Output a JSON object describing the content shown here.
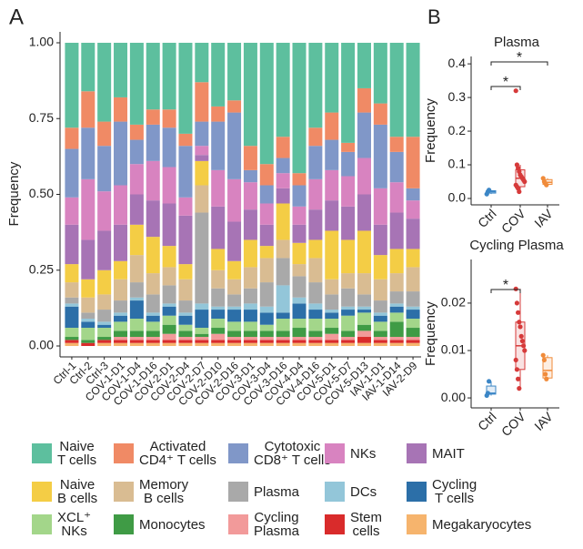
{
  "chart_data": [
    {
      "type": "stacked_bar",
      "panel_label": "A",
      "ylabel": "Frequency",
      "categories": [
        "Ctrl-1",
        "Ctrl-2",
        "Ctrl-3",
        "COV-1-D1",
        "COV-1-D4",
        "COV-1-D16",
        "COV-2-D1",
        "COV-2-D4",
        "COV-2-D7",
        "COV-2-D10",
        "COV-2-D16",
        "COV-3-D1",
        "COV-3-D4",
        "COV-3-D16",
        "COV-4-D4",
        "COV-4-D16",
        "COV-5-D1",
        "COV-5-D7",
        "COV-5-D13",
        "IAV-1-D1",
        "IAV-1-D14",
        "IAV-2-D9"
      ],
      "ylim": [
        -0.036,
        1.036
      ],
      "yticks": [
        {
          "value": 0,
          "label": "0.00"
        },
        0.25,
        {
          "value": 0.5,
          "label": "0.50"
        },
        0.75,
        {
          "value": 1,
          "label": "1.00"
        }
      ],
      "series": [
        {
          "name": "Naive\nT cells",
          "color": "#5dbf9e",
          "values": [
            0.28,
            0.16,
            0.26,
            0.18,
            0.27,
            0.22,
            0.22,
            0.3,
            0.13,
            0.21,
            0.19,
            0.34,
            0.4,
            0.31,
            0.43,
            0.28,
            0.23,
            0.33,
            0.15,
            0.2,
            0.31,
            0.31
          ]
        },
        {
          "name": "Activated\nCD4⁺ T cells",
          "color": "#f08a65",
          "values": [
            0.07,
            0.12,
            0.08,
            0.08,
            0.05,
            0.05,
            0.06,
            0.04,
            0.13,
            0.05,
            0.04,
            0.08,
            0.07,
            0.07,
            0.04,
            0.06,
            0.09,
            0.03,
            0.08,
            0.07,
            0.05,
            0.17
          ]
        },
        {
          "name": "Cytotoxic\nCD8⁺ T cells",
          "color": "#8097c8",
          "values": [
            0.16,
            0.17,
            0.15,
            0.21,
            0.08,
            0.12,
            0.13,
            0.17,
            0.08,
            0.16,
            0.22,
            0.04,
            0.06,
            0.05,
            0.07,
            0.11,
            0.1,
            0.08,
            0.15,
            0.21,
            0.1,
            0.04
          ]
        },
        {
          "name": "NKs",
          "color": "#d883c0",
          "values": [
            0.09,
            0.2,
            0.13,
            0.13,
            0.1,
            0.13,
            0.12,
            0.06,
            0.03,
            0.12,
            0.14,
            0.09,
            0.07,
            0.05,
            0.06,
            0.1,
            0.1,
            0.1,
            0.12,
            0.12,
            0.1,
            0.06
          ]
        },
        {
          "name": "MAIT",
          "color": "#a774b5",
          "values": [
            0.13,
            0.13,
            0.13,
            0.12,
            0.1,
            0.12,
            0.14,
            0.16,
            0.02,
            0.14,
            0.13,
            0.1,
            0.07,
            0.05,
            0.06,
            0.1,
            0.1,
            0.11,
            0.12,
            0.1,
            0.12,
            0.1
          ]
        },
        {
          "name": "Naive\nB cells",
          "color": "#f4cd45",
          "values": [
            0.06,
            0.06,
            0.08,
            0.06,
            0.1,
            0.12,
            0.07,
            0.05,
            0.08,
            0.07,
            0.06,
            0.09,
            0.04,
            0.12,
            0.07,
            0.06,
            0.16,
            0.11,
            0.14,
            0.08,
            0.08,
            0.06
          ]
        },
        {
          "name": "Memory\nB cells",
          "color": "#d9bc92",
          "values": [
            0.05,
            0.05,
            0.05,
            0.07,
            0.09,
            0.07,
            0.06,
            0.07,
            0.09,
            0.06,
            0.05,
            0.07,
            0.08,
            0.06,
            0.04,
            0.08,
            0.05,
            0.05,
            0.07,
            0.07,
            0.06,
            0.08
          ]
        },
        {
          "name": "Plasma",
          "color": "#a9a9a9",
          "values": [
            0.02,
            0.02,
            0.04,
            0.04,
            0.05,
            0.06,
            0.06,
            0.04,
            0.3,
            0.06,
            0.04,
            0.05,
            0.08,
            0.09,
            0.07,
            0.07,
            0.05,
            0.06,
            0.04,
            0.04,
            0.04,
            0.05
          ]
        },
        {
          "name": "DCs",
          "color": "#93c6d9",
          "values": [
            0.01,
            0.01,
            0.01,
            0.01,
            0.01,
            0.01,
            0.01,
            0.01,
            0.02,
            0.01,
            0.01,
            0.02,
            0.02,
            0.09,
            0.02,
            0.02,
            0.01,
            0.01,
            0.01,
            0.01,
            0.01,
            0.01
          ]
        },
        {
          "name": "Cycling\nT cells",
          "color": "#2c6fa8",
          "values": [
            0.07,
            0.02,
            0.01,
            0.02,
            0.06,
            0.02,
            0.03,
            0.03,
            0.06,
            0.03,
            0.04,
            0.04,
            0.04,
            0.02,
            0.05,
            0.03,
            0.02,
            0.02,
            0.01,
            0.02,
            0.02,
            0.03
          ]
        },
        {
          "name": "XCL⁺\nNKs",
          "color": "#a3d68a",
          "values": [
            0.03,
            0.04,
            0.03,
            0.03,
            0.04,
            0.03,
            0.03,
            0.02,
            0.02,
            0.03,
            0.03,
            0.03,
            0.02,
            0.04,
            0.03,
            0.04,
            0.03,
            0.05,
            0.04,
            0.03,
            0.03,
            0.03
          ]
        },
        {
          "name": "Monocytes",
          "color": "#3f9b45",
          "values": [
            0.01,
            0.01,
            0.01,
            0.02,
            0.02,
            0.02,
            0.03,
            0.02,
            0.01,
            0.02,
            0.02,
            0.02,
            0.02,
            0.02,
            0.03,
            0.02,
            0.02,
            0.02,
            0.02,
            0.02,
            0.05,
            0.03
          ]
        },
        {
          "name": "Cycling\nPlasma",
          "color": "#f29a9a",
          "values": [
            0,
            0,
            0,
            0.01,
            0.01,
            0.01,
            0.02,
            0.01,
            0.01,
            0.02,
            0.01,
            0.01,
            0.01,
            0.01,
            0.01,
            0.01,
            0.02,
            0.01,
            0.02,
            0.01,
            0.01,
            0.01
          ]
        },
        {
          "name": "Stem\ncells",
          "color": "#d92b2b",
          "values": [
            0.01,
            0.01,
            0.01,
            0.01,
            0.01,
            0.01,
            0.01,
            0.01,
            0.01,
            0.01,
            0.01,
            0.01,
            0.01,
            0.01,
            0.01,
            0.01,
            0.01,
            0.01,
            0.02,
            0.01,
            0.01,
            0.01
          ]
        },
        {
          "name": "Megakaryocytes",
          "color": "#f6b46d",
          "values": [
            0.01,
            0,
            0.01,
            0.01,
            0.01,
            0.01,
            0.01,
            0.01,
            0.01,
            0.01,
            0.01,
            0.01,
            0.01,
            0.01,
            0.01,
            0.01,
            0.01,
            0.01,
            0.01,
            0.01,
            0.01,
            0.01
          ]
        }
      ]
    },
    {
      "type": "box",
      "panel_label": "B",
      "title": "Plasma",
      "ylabel": "Frequency",
      "categories": [
        "Ctrl",
        "COV",
        "IAV"
      ],
      "ylim": [
        -0.019,
        0.422
      ],
      "yticks": [
        {
          "value": 0,
          "label": "0.0"
        },
        0.1,
        0.2,
        0.3,
        0.4
      ],
      "annotations": [
        "*",
        "*"
      ],
      "boxes": [
        {
          "color": "#3b86c6",
          "q1": 0.016,
          "median": 0.02,
          "q3": 0.023,
          "whislo": 0.013,
          "whishi": 0.025,
          "points": [
            0.013,
            0.02,
            0.025
          ]
        },
        {
          "color": "#d63a3a",
          "q1": 0.035,
          "median": 0.06,
          "q3": 0.085,
          "whislo": 0.02,
          "whishi": 0.1,
          "points": [
            0.32,
            0.1,
            0.09,
            0.08,
            0.07,
            0.065,
            0.06,
            0.055,
            0.05,
            0.04,
            0.035,
            0.03,
            0.02
          ]
        },
        {
          "color": "#f08b3a",
          "q1": 0.042,
          "median": 0.048,
          "q3": 0.056,
          "whislo": 0.04,
          "whishi": 0.06,
          "points": [
            0.06,
            0.05,
            0.045,
            0.04
          ]
        }
      ]
    },
    {
      "type": "box",
      "title": "Cycling Plasma",
      "ylabel": "Frequency",
      "categories": [
        "Ctrl",
        "COV",
        "IAV"
      ],
      "ylim": [
        -0.0021,
        0.0292
      ],
      "yticks": [
        {
          "value": 0,
          "label": "0.00"
        },
        0.01,
        0.02
      ],
      "annotations": [
        "*"
      ],
      "boxes": [
        {
          "color": "#3b86c6",
          "q1": 0.0008,
          "median": 0.001,
          "q3": 0.0025,
          "whislo": 0.0005,
          "whishi": 0.0035,
          "points": [
            0.0005,
            0.001,
            0.0035
          ]
        },
        {
          "color": "#d63a3a",
          "q1": 0.006,
          "median": 0.011,
          "q3": 0.016,
          "whislo": 0.002,
          "whishi": 0.023,
          "points": [
            0.023,
            0.02,
            0.018,
            0.016,
            0.015,
            0.013,
            0.012,
            0.011,
            0.01,
            0.008,
            0.006,
            0.004,
            0.002
          ]
        },
        {
          "color": "#f08b3a",
          "q1": 0.0042,
          "median": 0.0058,
          "q3": 0.0085,
          "whislo": 0.004,
          "whishi": 0.009,
          "points": [
            0.009,
            0.008,
            0.005,
            0.004
          ]
        }
      ]
    }
  ]
}
